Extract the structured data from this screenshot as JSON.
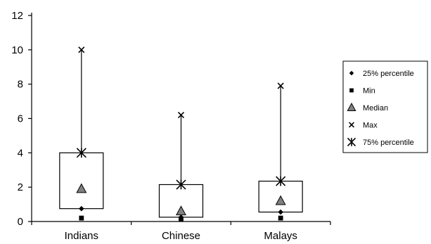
{
  "chart_data": {
    "type": "boxplot",
    "categories": [
      "Indians",
      "Chinese",
      "Malays"
    ],
    "ylim": [
      0,
      12
    ],
    "yticks": [
      0,
      2,
      4,
      6,
      8,
      10,
      12
    ],
    "grid": false,
    "legend_position": "right",
    "series": [
      {
        "name": "25% percentile",
        "marker": "diamond",
        "values": [
          0.75,
          0.25,
          0.55
        ]
      },
      {
        "name": "Min",
        "marker": "square",
        "values": [
          0.2,
          0.15,
          0.2
        ]
      },
      {
        "name": "Median",
        "marker": "triangle",
        "values": [
          1.9,
          0.6,
          1.2
        ]
      },
      {
        "name": "Max",
        "marker": "x",
        "values": [
          10.0,
          6.2,
          7.9
        ]
      },
      {
        "name": "75% percentile",
        "marker": "asterisk",
        "values": [
          4.0,
          2.15,
          2.35
        ]
      }
    ],
    "colors": {
      "median": "#808080",
      "ink": "#000000"
    }
  }
}
